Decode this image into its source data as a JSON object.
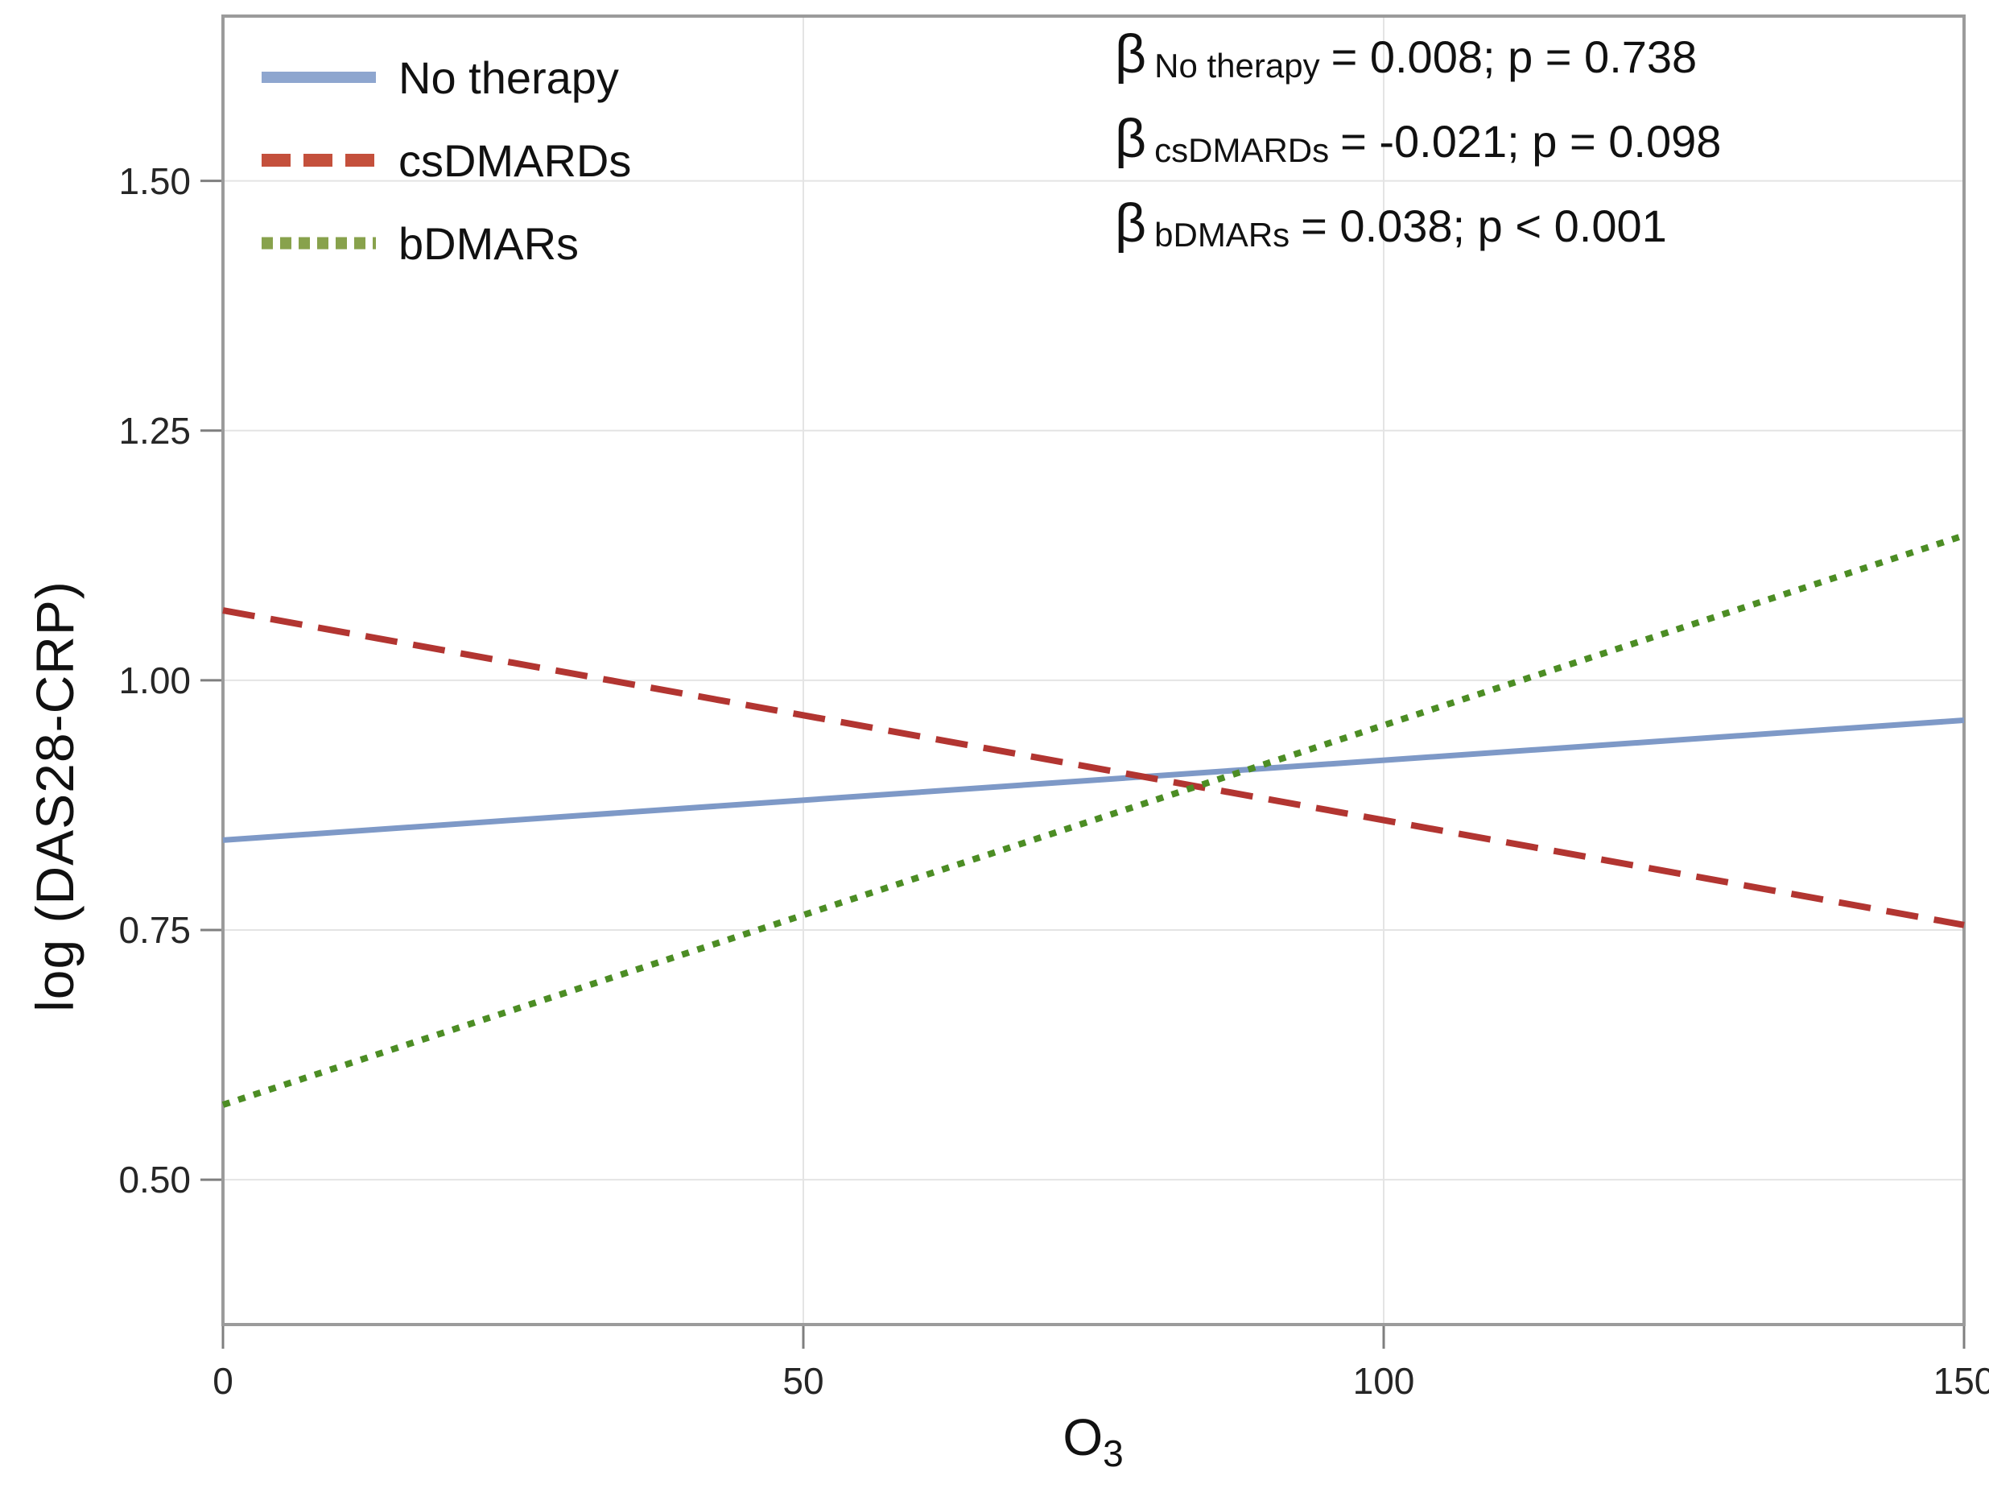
{
  "chart_data": {
    "type": "line",
    "title": "",
    "xlabel": "O",
    "xlabel_sub": "3",
    "ylabel": "log (DAS28-CRP)",
    "xlim": [
      0,
      150
    ],
    "ylim": [
      0.355,
      1.665
    ],
    "x_ticks": [
      0,
      50,
      100,
      150
    ],
    "x_tick_labels": [
      "0",
      "50",
      "100",
      "150"
    ],
    "y_ticks": [
      1.5,
      1.25,
      1.0,
      0.75,
      0.5
    ],
    "y_tick_labels": [
      "1.50",
      "1.25",
      "1.00",
      "0.75",
      "0.50"
    ],
    "grid": true,
    "legend_position": "top-left-inside",
    "series": [
      {
        "name": "No therapy",
        "style": "solid",
        "color": "#7E99C7",
        "legend_color": "#8EA6CF",
        "x": [
          0,
          150
        ],
        "y": [
          0.84,
          0.96
        ],
        "beta": 0.008,
        "p_value": "0.738"
      },
      {
        "name": "csDMARDs",
        "style": "dashed",
        "color": "#B23531",
        "legend_color": "#C4503C",
        "x": [
          0,
          150
        ],
        "y": [
          1.07,
          0.755
        ],
        "beta": -0.021,
        "p_value": "0.098"
      },
      {
        "name": "bDMARs",
        "style": "dotted",
        "color": "#4C8D24",
        "legend_color": "#88A24C",
        "x": [
          0,
          150
        ],
        "y": [
          0.575,
          1.145
        ],
        "beta": 0.038,
        "p_value": "< 0.001"
      }
    ]
  },
  "colors": {
    "border": "#9B9B9B",
    "tick": "#7F7F7F",
    "grid": "#E4E4E4",
    "text": "#111111"
  },
  "annotations": {
    "rows": [
      {
        "symbol": "β",
        "sub": "No therapy",
        "rest": "= 0.008;  p = 0.738"
      },
      {
        "symbol": "β",
        "sub": "csDMARDs",
        "rest": "= -0.021;  p = 0.098"
      },
      {
        "symbol": "β",
        "sub": "bDMARs",
        "rest": "= 0.038;  p < 0.001"
      }
    ]
  }
}
